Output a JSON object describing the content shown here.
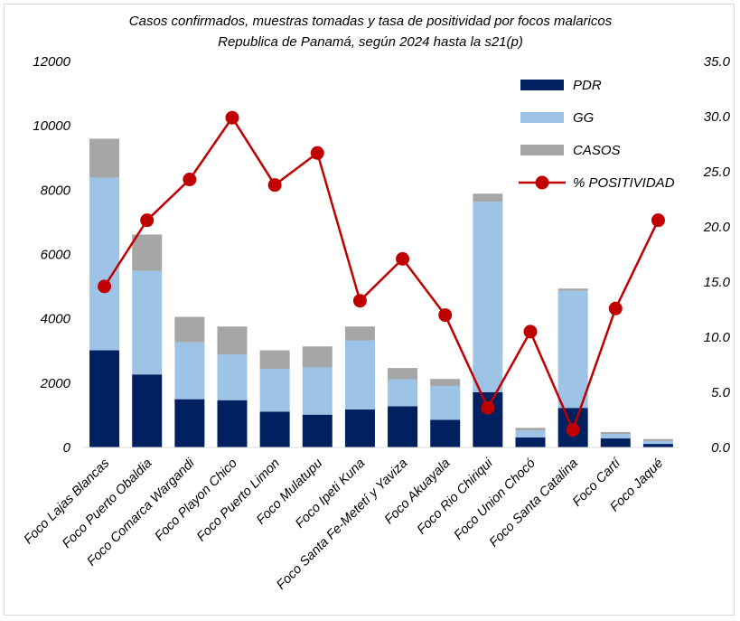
{
  "chart_data": {
    "type": "bar",
    "subtype": "stacked-bar-with-line",
    "title": "Casos confirmados, muestras tomadas y  tasa de positividad por focos malaricos",
    "subtitle": "Republica de Panamá, según 2024 hasta la s21(p)",
    "categories": [
      "Foco Lajas Blancas",
      "Foco Puerto Obaldia",
      "Foco Comarca Wargandi",
      "Foco Playon Chico",
      "Foco Puerto Limon",
      "Foco Mulatupu",
      "Foco Ipeti Kuna",
      "Foco Santa Fe-Metetí y Yaviza",
      "Foco Akuayala",
      "Foco Rio Chiriqui",
      "Foco Union Chocó",
      "Foco Santa Catalina",
      "Foco Cartí",
      "Foco Jaqué"
    ],
    "series": [
      {
        "name": "PDR",
        "axis": "left",
        "kind": "bar",
        "color": "#002060",
        "values": [
          3020,
          2270,
          1500,
          1470,
          1110,
          1020,
          1180,
          1280,
          860,
          1720,
          310,
          1230,
          280,
          110
        ]
      },
      {
        "name": "GG",
        "axis": "left",
        "kind": "bar",
        "color": "#9DC3E6",
        "values": [
          5370,
          3220,
          1770,
          1420,
          1330,
          1470,
          2150,
          840,
          1050,
          5920,
          220,
          3640,
          140,
          90
        ]
      },
      {
        "name": "CASOS",
        "axis": "left",
        "kind": "bar",
        "color": "#A6A6A6",
        "values": [
          1210,
          1130,
          790,
          870,
          580,
          650,
          430,
          350,
          220,
          250,
          80,
          70,
          60,
          60
        ]
      },
      {
        "name": "% POSITIVIDAD",
        "axis": "right",
        "kind": "line",
        "color": "#C00000",
        "values": [
          14.6,
          20.6,
          24.3,
          29.9,
          23.8,
          26.7,
          13.3,
          17.1,
          12.0,
          3.6,
          10.5,
          1.6,
          12.6,
          20.6
        ]
      }
    ],
    "y_left": {
      "min": 0,
      "max": 12000,
      "ticks": [
        "0",
        "2000",
        "4000",
        "6000",
        "8000",
        "10000",
        "12000"
      ]
    },
    "y_right": {
      "min": 0,
      "max": 35,
      "ticks": [
        "0.0",
        "5.0",
        "10.0",
        "15.0",
        "20.0",
        "25.0",
        "30.0",
        "35.0"
      ]
    },
    "grid": false,
    "legend": "top-right"
  }
}
